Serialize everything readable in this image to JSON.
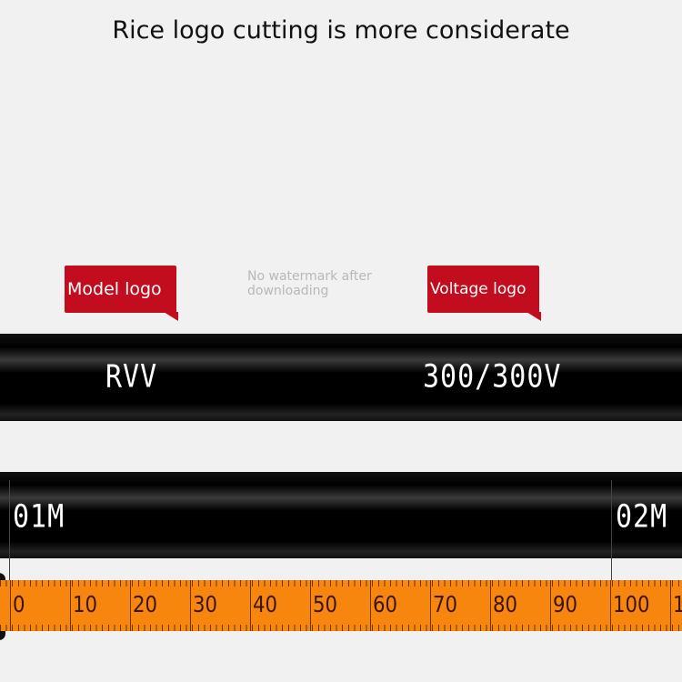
{
  "title": "Rice logo cutting is more considerate",
  "callouts": {
    "model": "Model logo",
    "voltage": "Voltage logo"
  },
  "watermark_note": {
    "line1": "No watermark after",
    "line2": "downloading"
  },
  "cable_top": {
    "model_print": "RVV",
    "voltage_print": "300/300V"
  },
  "cable_bottom": {
    "mark_1": "01M",
    "mark_2": "02M"
  },
  "tape": {
    "labels": [
      "0",
      "10",
      "20",
      "30",
      "40",
      "50",
      "60",
      "70",
      "80",
      "90",
      "100",
      "1"
    ]
  },
  "colors": {
    "callout": "#c20d1f",
    "tape": "#f7860f",
    "cable": "#000000"
  }
}
